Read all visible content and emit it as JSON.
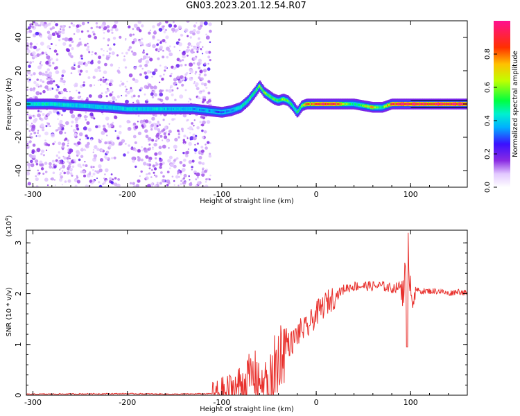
{
  "title": "GN03.2023.201.12.54.R07",
  "colors": {
    "snr_line": "#e8302c",
    "frame": "#000000"
  },
  "chart_data": [
    {
      "type": "heatmap",
      "xlabel": "Height of straight line (km)",
      "ylabel": "Frequency (Hz)",
      "xlim": [
        -307,
        160
      ],
      "ylim": [
        -50,
        50
      ],
      "x_ticks": [
        -300,
        -200,
        -100,
        0,
        100
      ],
      "y_ticks": [
        -40,
        -20,
        0,
        20,
        40
      ],
      "colorbar": {
        "label": "Normalized spectral amplitude",
        "range": [
          0,
          1
        ],
        "ticks": [
          "0.0",
          "0.2",
          "0.4",
          "0.6",
          "0.8"
        ],
        "colormap": "white-purple-blue-cyan-green-yellow-red-magenta"
      },
      "ridge": {
        "x": [
          -307,
          -280,
          -250,
          -220,
          -200,
          -180,
          -160,
          -130,
          -115,
          -100,
          -90,
          -80,
          -72,
          -65,
          -60,
          -55,
          -50,
          -45,
          -40,
          -35,
          -30,
          -25,
          -20,
          -15,
          -10,
          0,
          20,
          40,
          60,
          70,
          80,
          90,
          100,
          160
        ],
        "freq": [
          0,
          0,
          -1,
          -2,
          -3,
          -3,
          -3,
          -3,
          -4,
          -5,
          -4,
          -2,
          2,
          7,
          11,
          7,
          5,
          3,
          2,
          3,
          2,
          -1,
          -5,
          -1,
          0,
          0,
          0,
          0,
          -2,
          -2,
          0,
          0,
          0,
          0
        ],
        "amplitude": [
          0.45,
          0.45,
          0.4,
          0.4,
          0.42,
          0.4,
          0.4,
          0.35,
          0.35,
          0.3,
          0.35,
          0.45,
          0.5,
          0.55,
          0.6,
          0.65,
          0.6,
          0.55,
          0.55,
          0.6,
          0.55,
          0.5,
          0.5,
          0.6,
          0.8,
          0.9,
          0.9,
          0.45,
          0.75,
          0.5,
          0.9,
          0.95,
          0.95,
          0.95
        ]
      },
      "noise_region_x": [
        -307,
        -112
      ]
    },
    {
      "type": "line",
      "xlabel": "Height of straight line (km)",
      "ylabel": "SNR (10 * v/v)",
      "y_scale_label": "(x10",
      "y_scale_exponent": "4",
      "xlim": [
        -307,
        160
      ],
      "ylim": [
        0,
        3.25
      ],
      "x_ticks": [
        -300,
        -200,
        -100,
        0,
        100
      ],
      "y_ticks": [
        0,
        1,
        2,
        3
      ],
      "series": [
        {
          "x": [
            -307,
            -200,
            -150,
            -110,
            -100,
            -90,
            -80,
            -70,
            -60,
            -50,
            -45,
            -40,
            -35,
            -30,
            -25,
            -20,
            -15,
            -10,
            -5,
            0,
            10,
            20,
            30,
            40,
            50,
            60,
            70,
            80,
            90,
            95,
            97,
            100,
            110,
            120,
            130,
            140,
            150,
            160
          ],
          "y": [
            0.02,
            0.03,
            0.02,
            0.03,
            0.05,
            0.1,
            0.2,
            0.35,
            0.4,
            0.05,
            0.5,
            0.8,
            0.9,
            1.0,
            1.05,
            1.2,
            1.3,
            1.3,
            1.45,
            1.6,
            1.8,
            1.95,
            2.1,
            2.15,
            2.15,
            2.15,
            2.15,
            2.1,
            2.15,
            2.3,
            3.2,
            2.1,
            2.05,
            2.05,
            2.05,
            2.0,
            2.05,
            2.0
          ]
        }
      ]
    }
  ]
}
